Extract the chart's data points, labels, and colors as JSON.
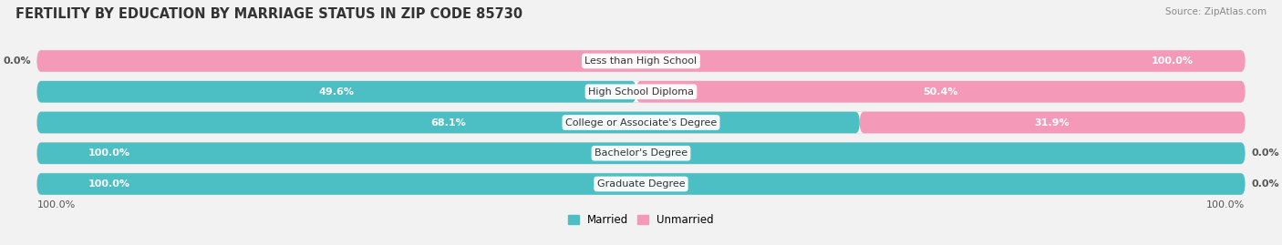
{
  "title": "FERTILITY BY EDUCATION BY MARRIAGE STATUS IN ZIP CODE 85730",
  "source": "Source: ZipAtlas.com",
  "categories": [
    "Less than High School",
    "High School Diploma",
    "College or Associate's Degree",
    "Bachelor's Degree",
    "Graduate Degree"
  ],
  "married_pct": [
    0.0,
    49.6,
    68.1,
    100.0,
    100.0
  ],
  "unmarried_pct": [
    100.0,
    50.4,
    31.9,
    0.0,
    0.0
  ],
  "married_color": "#4BBFC3",
  "unmarried_color": "#F49AB8",
  "background_color": "#f2f2f2",
  "bar_bg_color": "#ffffff",
  "title_fontsize": 10.5,
  "label_fontsize": 8,
  "category_fontsize": 8,
  "source_fontsize": 7.5
}
